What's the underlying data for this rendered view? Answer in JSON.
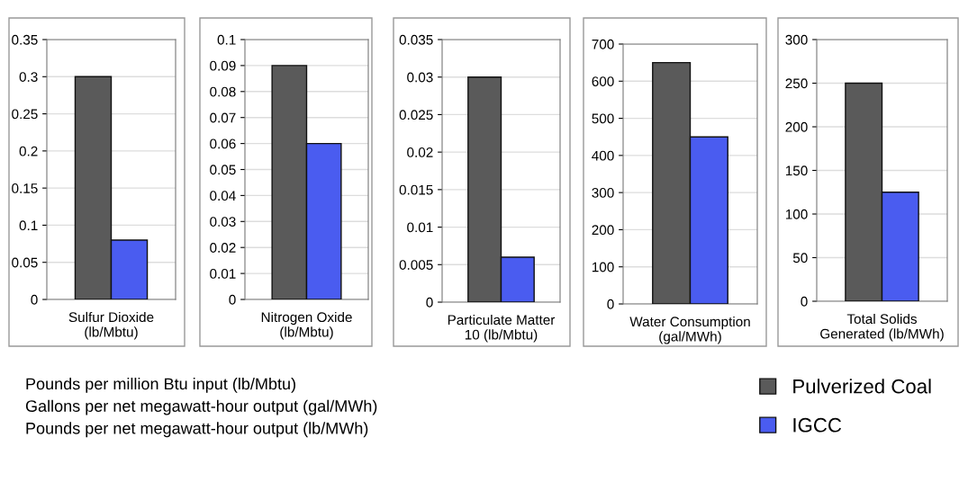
{
  "chart_data": [
    {
      "type": "bar",
      "categories": [
        "Sulfur Dioxide\n(lb/Mbtu)"
      ],
      "series": [
        {
          "name": "Pulverized Coal",
          "color": "#5a5a5a",
          "values": [
            0.3
          ]
        },
        {
          "name": "IGCC",
          "color": "#4a5cf0",
          "values": [
            0.08
          ]
        }
      ],
      "ylim": [
        0,
        0.35
      ],
      "yticks": [
        0,
        0.05,
        0.1,
        0.15,
        0.2,
        0.25,
        0.3,
        0.35
      ],
      "grid": "y",
      "legend": "bottom right",
      "annotations": [
        "Pounds per million Btu input (lb/Mbtu)\nGallons per net megawatt-hour output (gal/MWh)\nPounds per net megawatt-hour output (lb/MWh)"
      ]
    },
    {
      "type": "bar",
      "categories": [
        "Nitrogen Oxide\n(lb/Mbtu)"
      ],
      "series": [
        {
          "color": "#5a5a5a",
          "values": [
            0.09
          ]
        },
        {
          "color": "#4a5cf0",
          "values": [
            0.06
          ]
        }
      ],
      "ylim": [
        0,
        0.1
      ],
      "yticks": [
        0,
        0.01,
        0.02,
        0.03,
        0.04,
        0.05,
        0.06,
        0.07,
        0.08,
        0.09,
        0.1
      ],
      "grid": "y"
    },
    {
      "type": "bar",
      "categories": [
        "Particulate Matter\n10 (lb/Mbtu)"
      ],
      "series": [
        {
          "color": "#5a5a5a",
          "values": [
            0.03
          ]
        },
        {
          "color": "#4a5cf0",
          "values": [
            0.006
          ]
        }
      ],
      "ylim": [
        0,
        0.035
      ],
      "yticks": [
        0,
        0.005,
        0.01,
        0.015,
        0.02,
        0.025,
        0.03,
        0.035
      ],
      "grid": "y"
    },
    {
      "type": "bar",
      "categories": [
        "Water Consumption\n(gal/MWh)"
      ],
      "series": [
        {
          "color": "#5a5a5a",
          "values": [
            650
          ]
        },
        {
          "color": "#4a5cf0",
          "values": [
            450
          ]
        }
      ],
      "ylim": [
        0,
        700
      ],
      "yticks": [
        0,
        100,
        200,
        300,
        400,
        500,
        600,
        700
      ],
      "grid": "y"
    },
    {
      "type": "bar",
      "categories": [
        "Total Solids\nGenerated (lb/MWh)"
      ],
      "series": [
        {
          "color": "#5a5a5a",
          "values": [
            250
          ]
        },
        {
          "color": "#4a5cf0",
          "values": [
            125
          ]
        }
      ],
      "ylim": [
        0,
        300
      ],
      "yticks": [
        0,
        50,
        100,
        150,
        200,
        250,
        300
      ],
      "grid": "y"
    }
  ]
}
